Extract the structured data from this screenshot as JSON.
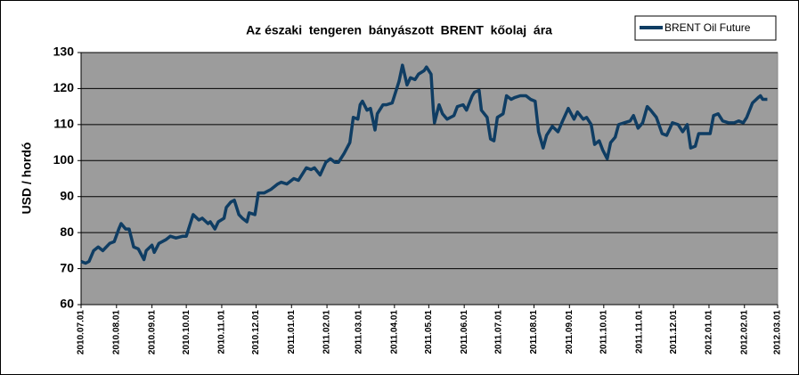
{
  "chart_data": {
    "type": "line",
    "title": "Az északi  tengeren  bányászott  BRENT  kőolaj  ára",
    "y_label": "USD / hordó",
    "legend": "top-right",
    "grid": true,
    "ylim": [
      60,
      130
    ],
    "yticks": [
      60,
      70,
      80,
      90,
      100,
      110,
      120,
      130
    ],
    "xlim": [
      "2010.07.01",
      "2012.03.01"
    ],
    "xticks": [
      "2010.07.01",
      "2010.08.01",
      "2010.09.01",
      "2010.10.01",
      "2010.11.01",
      "2010.12.01",
      "2011.01.01",
      "2011.02.01",
      "2011.03.01",
      "2011.04.01",
      "2011.05.01",
      "2011.06.01",
      "2011.07.01",
      "2011.08.01",
      "2011.09.01",
      "2011.10.01",
      "2011.11.01",
      "2011.12.01",
      "2012.01.01",
      "2012.02.01",
      "2012.03.01"
    ],
    "x": [
      "2010.07.01",
      "2010.07.05",
      "2010.07.08",
      "2010.07.12",
      "2010.07.16",
      "2010.07.20",
      "2010.07.26",
      "2010.07.30",
      "2010.08.03",
      "2010.08.05",
      "2010.08.09",
      "2010.08.12",
      "2010.08.16",
      "2010.08.20",
      "2010.08.25",
      "2010.08.27",
      "2010.09.01",
      "2010.09.03",
      "2010.09.07",
      "2010.09.13",
      "2010.09.17",
      "2010.09.22",
      "2010.09.28",
      "2010.10.01",
      "2010.10.05",
      "2010.10.07",
      "2010.10.12",
      "2010.10.15",
      "2010.10.20",
      "2010.10.22",
      "2010.10.26",
      "2010.10.29",
      "2010.11.03",
      "2010.11.05",
      "2010.11.09",
      "2010.11.12",
      "2010.11.16",
      "2010.11.19",
      "2010.11.23",
      "2010.11.25",
      "2010.11.30",
      "2010.12.03",
      "2010.12.08",
      "2010.12.14",
      "2010.12.20",
      "2010.12.23",
      "2010.12.28",
      "2011.01.03",
      "2011.01.07",
      "2011.01.11",
      "2011.01.14",
      "2011.01.18",
      "2011.01.21",
      "2011.01.26",
      "2011.01.31",
      "2011.02.04",
      "2011.02.08",
      "2011.02.11",
      "2011.02.16",
      "2011.02.21",
      "2011.02.24",
      "2011.02.28",
      "2011.03.02",
      "2011.03.04",
      "2011.03.08",
      "2011.03.11",
      "2011.03.15",
      "2011.03.17",
      "2011.03.22",
      "2011.03.25",
      "2011.03.30",
      "2011.04.01",
      "2011.04.05",
      "2011.04.08",
      "2011.04.12",
      "2011.04.15",
      "2011.04.19",
      "2011.04.22",
      "2011.04.27",
      "2011.04.29",
      "2011.05.03",
      "2011.05.05",
      "2011.05.06",
      "2011.05.10",
      "2011.05.13",
      "2011.05.17",
      "2011.05.23",
      "2011.05.26",
      "2011.05.31",
      "2011.06.03",
      "2011.06.08",
      "2011.06.10",
      "2011.06.14",
      "2011.06.16",
      "2011.06.21",
      "2011.06.24",
      "2011.06.27",
      "2011.06.30",
      "2011.07.05",
      "2011.07.08",
      "2011.07.12",
      "2011.07.15",
      "2011.07.20",
      "2011.07.25",
      "2011.07.29",
      "2011.08.02",
      "2011.08.05",
      "2011.08.09",
      "2011.08.12",
      "2011.08.17",
      "2011.08.22",
      "2011.08.26",
      "2011.08.31",
      "2011.09.05",
      "2011.09.08",
      "2011.09.13",
      "2011.09.16",
      "2011.09.20",
      "2011.09.23",
      "2011.09.27",
      "2011.09.30",
      "2011.10.04",
      "2011.10.07",
      "2011.10.11",
      "2011.10.14",
      "2011.10.19",
      "2011.10.24",
      "2011.10.27",
      "2011.10.31",
      "2011.11.04",
      "2011.11.08",
      "2011.11.11",
      "2011.11.16",
      "2011.11.21",
      "2011.11.25",
      "2011.11.30",
      "2011.12.05",
      "2011.12.09",
      "2011.12.13",
      "2011.12.16",
      "2011.12.20",
      "2011.12.23",
      "2011.12.28",
      "2012.01.02",
      "2012.01.05",
      "2012.01.09",
      "2012.01.13",
      "2012.01.18",
      "2012.01.23",
      "2012.01.27",
      "2012.01.31",
      "2012.02.03",
      "2012.02.08",
      "2012.02.13",
      "2012.02.15",
      "2012.02.17",
      "2012.02.21"
    ],
    "series": [
      {
        "name": "BRENT Oil Future",
        "color": "#0f3d63",
        "values": [
          72,
          71.5,
          72,
          75,
          76,
          75,
          77,
          77.5,
          81,
          82.5,
          81,
          81,
          76,
          75.5,
          72.5,
          75,
          76.5,
          74.5,
          77,
          78,
          79,
          78.5,
          79,
          79,
          83,
          85,
          83.5,
          84,
          82.5,
          83,
          81,
          83,
          84,
          87,
          88.5,
          89,
          85,
          84,
          83,
          85.5,
          85,
          91,
          91,
          92,
          93.5,
          94,
          93.5,
          95,
          94.5,
          96.5,
          98,
          97.5,
          98,
          96,
          99.5,
          100.5,
          99.5,
          99.5,
          102,
          105,
          112,
          111.5,
          115.5,
          116.5,
          114,
          114.5,
          108.5,
          113,
          115.5,
          115.5,
          116,
          118,
          122,
          126.5,
          121,
          123,
          122.5,
          124,
          125,
          126,
          124,
          114,
          110.5,
          115.5,
          113,
          111.5,
          112.5,
          115,
          115.5,
          114,
          118,
          119,
          119.5,
          114,
          112,
          106,
          105.5,
          112,
          113,
          118,
          117,
          117.5,
          118,
          118,
          117,
          116.5,
          108,
          103.5,
          107,
          109.5,
          108,
          111,
          114.5,
          111.5,
          113.5,
          111.5,
          112,
          110,
          104.5,
          105.5,
          103,
          100.5,
          105,
          106.5,
          110,
          110.5,
          111,
          112.5,
          109,
          110.5,
          115,
          114,
          112,
          107.5,
          107,
          110.5,
          110,
          108,
          110,
          103.5,
          104,
          107.5,
          107.5,
          107.5,
          112.5,
          113,
          111,
          110.5,
          110.5,
          111,
          110.5,
          112,
          116,
          117.5,
          118,
          117,
          117
        ]
      }
    ]
  }
}
